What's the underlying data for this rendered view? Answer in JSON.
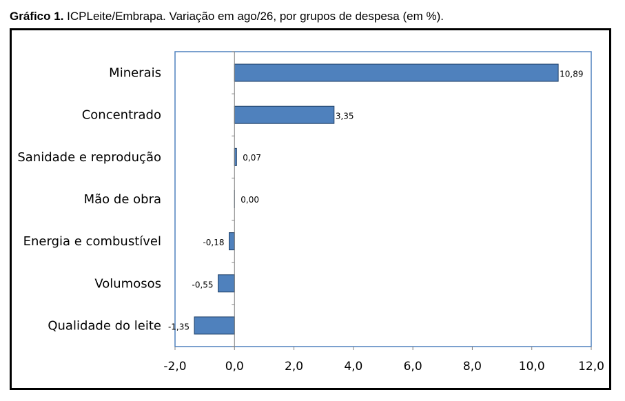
{
  "caption": {
    "prefix": "Gráfico 1.",
    "text": " ICPLeite/Embrapa. Variação em ago/26, por grupos de despesa (em %)."
  },
  "chart_data": {
    "type": "bar",
    "orientation": "horizontal",
    "categories": [
      "Minerais",
      "Concentrado",
      "Sanidade e reprodução",
      "Mão de obra",
      "Energia e combustível",
      "Volumosos",
      "Qualidade do leite"
    ],
    "values": [
      10.89,
      3.35,
      0.07,
      0.0,
      -0.18,
      -0.55,
      -1.35
    ],
    "data_labels": [
      "10,89",
      "3,35",
      "0,07",
      "0,00",
      "-0,18",
      "-0,55",
      "-1,35"
    ],
    "xlim": [
      -2,
      12
    ],
    "xticks": [
      -2,
      0,
      2,
      4,
      6,
      8,
      10,
      12
    ],
    "xtick_labels": [
      "-2,0",
      "0,0",
      "2,0",
      "4,0",
      "6,0",
      "8,0",
      "10,0",
      "12,0"
    ],
    "grid": false,
    "legend": "none",
    "bar_color": "#4F81BD",
    "bar_edge_color": "#1F3F66",
    "plot_border_color": "#4F81BD"
  }
}
